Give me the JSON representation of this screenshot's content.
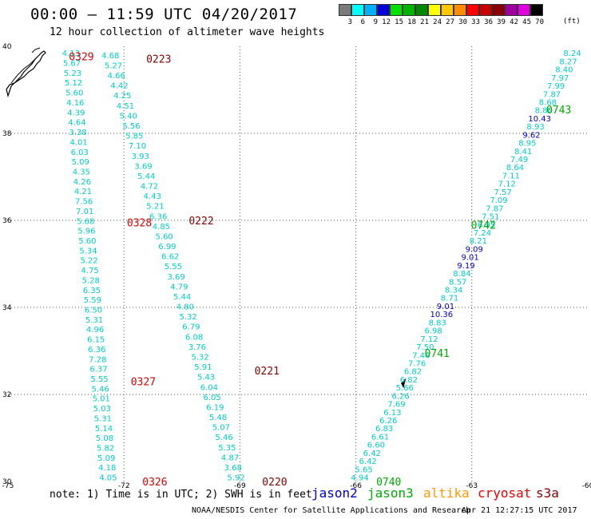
{
  "header": {
    "title": "00:00 – 11:59 UTC 04/20/2017",
    "subtitle": "12 hour collection of altimeter wave heights"
  },
  "color_scale": {
    "unit": "(ft)",
    "bins": [
      {
        "label": "3",
        "color": "#7a7a7a"
      },
      {
        "label": "6",
        "color": "#00ffff"
      },
      {
        "label": "9",
        "color": "#00b0ff"
      },
      {
        "label": "12",
        "color": "#0000d8"
      },
      {
        "label": "15",
        "color": "#00e000"
      },
      {
        "label": "18",
        "color": "#00b400"
      },
      {
        "label": "21",
        "color": "#008800"
      },
      {
        "label": "24",
        "color": "#ffff00"
      },
      {
        "label": "27",
        "color": "#ffc800"
      },
      {
        "label": "30",
        "color": "#ff8c00"
      },
      {
        "label": "33",
        "color": "#ff0000"
      },
      {
        "label": "36",
        "color": "#c80000"
      },
      {
        "label": "39",
        "color": "#8b0000"
      },
      {
        "label": "42",
        "color": "#a000a0"
      },
      {
        "label": "45",
        "color": "#e000e0"
      },
      {
        "label": "70",
        "color": "#000000"
      }
    ]
  },
  "axes": {
    "lon_labels": [
      "-75",
      "-72",
      "-69",
      "-66",
      "-63",
      "-60"
    ],
    "lat_labels": [
      "40",
      "38",
      "36",
      "34",
      "32",
      "30"
    ],
    "lon_ticks": [
      -75,
      -72,
      -69,
      -66,
      -63,
      -60
    ],
    "lat_ticks": [
      40,
      38,
      36,
      34,
      32,
      30
    ],
    "lon_range": [
      -75,
      -60
    ],
    "lat_range": [
      30,
      40
    ]
  },
  "tracks": [
    {
      "lon0": -73.37,
      "lon1": -72.41,
      "lat0": 39.85,
      "lat1": 30.1,
      "color": "#00cccc",
      "values": [
        "4.13",
        "5.67",
        "5.23",
        "5.12",
        "5.60",
        "4.16",
        "4.39",
        "4.64",
        "3.38",
        "4.01",
        "6.03",
        "5.09",
        "4.35",
        "4.26",
        "4.21",
        "7.56",
        "7.01",
        "5.68",
        "5.96",
        "5.60",
        "5.34",
        "5.22",
        "4.75",
        "5.28",
        "6.35",
        "5.59",
        "6.50",
        "5.31",
        "4.96",
        "6.15",
        "6.36",
        "7.28",
        "6.37",
        "5.55",
        "5.46",
        "5.01",
        "5.03",
        "5.31",
        "5.14",
        "5.08",
        "5.82",
        "5.09",
        "4.18",
        "4.05"
      ]
    },
    {
      "lon0": -72.35,
      "lon1": -69.1,
      "lat0": 39.8,
      "lat1": 30.1,
      "color": "#00cccc",
      "values": [
        "4.68",
        "5.27",
        "4.66",
        "4.42",
        "4.25",
        "4.51",
        "5.40",
        "5.56",
        "5.85",
        "7.10",
        "3.93",
        "3.69",
        "5.44",
        "4.72",
        "4.43",
        "5.21",
        "6.36",
        "4.85",
        "5.60",
        "6.99",
        "6.62",
        "5.55",
        "3.69",
        "4.79",
        "5.44",
        "4.80",
        "5.32",
        "6.79",
        "6.08",
        "3.76",
        "5.32",
        "5.91",
        "5.43",
        "6.04",
        "6.05",
        "6.19",
        "5.48",
        "5.07",
        "5.46",
        "5.35",
        "4.87",
        "3.68",
        "5.92"
      ]
    },
    {
      "lon0": -65.9,
      "lon1": -60.4,
      "lat0": 30.1,
      "lat1": 39.85,
      "color": "#00cccc",
      "values": [
        "4.94",
        "5.65",
        "6.42",
        "6.42",
        "6.60",
        "6.61",
        "6.83",
        "6.26",
        "6.13",
        "7.69",
        "6.26",
        "5.66",
        "6.82",
        "6.82",
        "7.76",
        "7.46",
        "7.50",
        "7.12",
        "6.98",
        "8.83",
        "10.36",
        "9.01",
        "8.71",
        "8.34",
        "8.57",
        "8.84",
        "9.19",
        "9.01",
        "9.09",
        "8.21",
        "7.24",
        "6.95",
        "7.51",
        "7.87",
        "7.09",
        "7.57",
        "7.12",
        "7.11",
        "8.64",
        "7.49",
        "8.41",
        "8.95",
        "9.62",
        "8.93",
        "10.43",
        "8.80",
        "8.68",
        "7.87",
        "7.99",
        "7.97",
        "8.40",
        "8.27",
        "8.24"
      ]
    }
  ],
  "time_labels": [
    {
      "text": "0329",
      "lon": -73.1,
      "lat": 39.77,
      "color": "#dd0000"
    },
    {
      "text": "0223",
      "lon": -71.1,
      "lat": 39.72,
      "color": "#880000"
    },
    {
      "text": "0328",
      "lon": -71.6,
      "lat": 35.95,
      "color": "#dd0000"
    },
    {
      "text": "0222",
      "lon": -70.0,
      "lat": 36.0,
      "color": "#880000"
    },
    {
      "text": "0327",
      "lon": -71.5,
      "lat": 32.3,
      "color": "#dd0000"
    },
    {
      "text": "0221",
      "lon": -68.3,
      "lat": 32.55,
      "color": "#880000"
    },
    {
      "text": "0326",
      "lon": -71.2,
      "lat": 30.0,
      "color": "#dd0000"
    },
    {
      "text": "0220",
      "lon": -68.1,
      "lat": 30.0,
      "color": "#880000"
    },
    {
      "text": "0740",
      "lon": -65.15,
      "lat": 30.0,
      "color": "#00aa00"
    },
    {
      "text": "0741",
      "lon": -63.9,
      "lat": 32.95,
      "color": "#00aa00"
    },
    {
      "text": "0742",
      "lon": -62.7,
      "lat": 35.9,
      "color": "#00aa00"
    },
    {
      "text": "0743",
      "lon": -60.75,
      "lat": 38.55,
      "color": "#00aa00"
    }
  ],
  "note": "note: 1) Time is in UTC; 2) SWH is in feet",
  "legend": [
    {
      "label": "jason2",
      "color": "#0000cc"
    },
    {
      "label": "jason3",
      "color": "#00aa00"
    },
    {
      "label": "altika",
      "color": "#ff9900"
    },
    {
      "label": "cryosat",
      "color": "#ee0000"
    },
    {
      "label": "s3a",
      "color": "#880000"
    }
  ],
  "footer": {
    "credit": "NOAA/NESDIS Center for Satellite Applications and Research",
    "timestamp": "Apr 21 12:27:15 UTC 2017"
  }
}
